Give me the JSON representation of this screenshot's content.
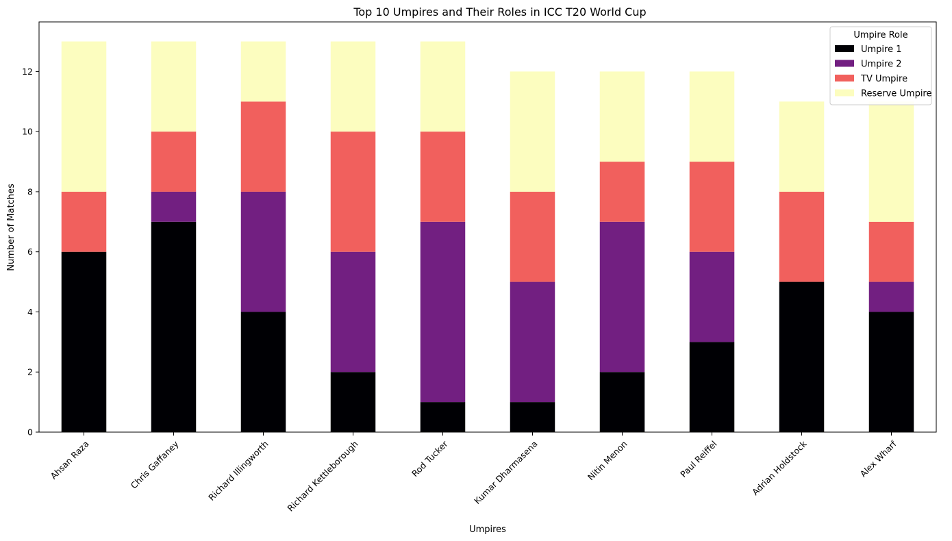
{
  "chart_data": {
    "type": "bar",
    "stacked": true,
    "title": "Top 10 Umpires and Their Roles in ICC T20 World Cup",
    "xlabel": "Umpires",
    "ylabel": "Number of Matches",
    "ylim": [
      0,
      13.65
    ],
    "yticks": [
      0,
      2,
      4,
      6,
      8,
      10,
      12
    ],
    "categories": [
      "Ahsan Raza",
      "Chris Gaffaney",
      "Richard Illingworth",
      "Richard Kettleborough",
      "Rod Tucker",
      "Kumar Dharmasena",
      "Nitin Menon",
      "Paul Reiffel",
      "Adrian Holdstock",
      "Alex Wharf"
    ],
    "series": [
      {
        "name": "Umpire 1",
        "color": "#000004",
        "values": [
          6,
          7,
          4,
          2,
          1,
          1,
          2,
          3,
          5,
          4
        ]
      },
      {
        "name": "Umpire 2",
        "color": "#721f81",
        "values": [
          0,
          1,
          4,
          4,
          6,
          4,
          5,
          3,
          0,
          1
        ]
      },
      {
        "name": "TV Umpire",
        "color": "#f1605d",
        "values": [
          2,
          2,
          3,
          4,
          3,
          3,
          2,
          3,
          3,
          2
        ]
      },
      {
        "name": "Reserve Umpire",
        "color": "#fcfdbf",
        "values": [
          5,
          3,
          2,
          3,
          3,
          4,
          3,
          3,
          3,
          4
        ]
      }
    ],
    "legend": {
      "title": "Umpire Role",
      "placement": "top-right"
    },
    "grid": false
  }
}
